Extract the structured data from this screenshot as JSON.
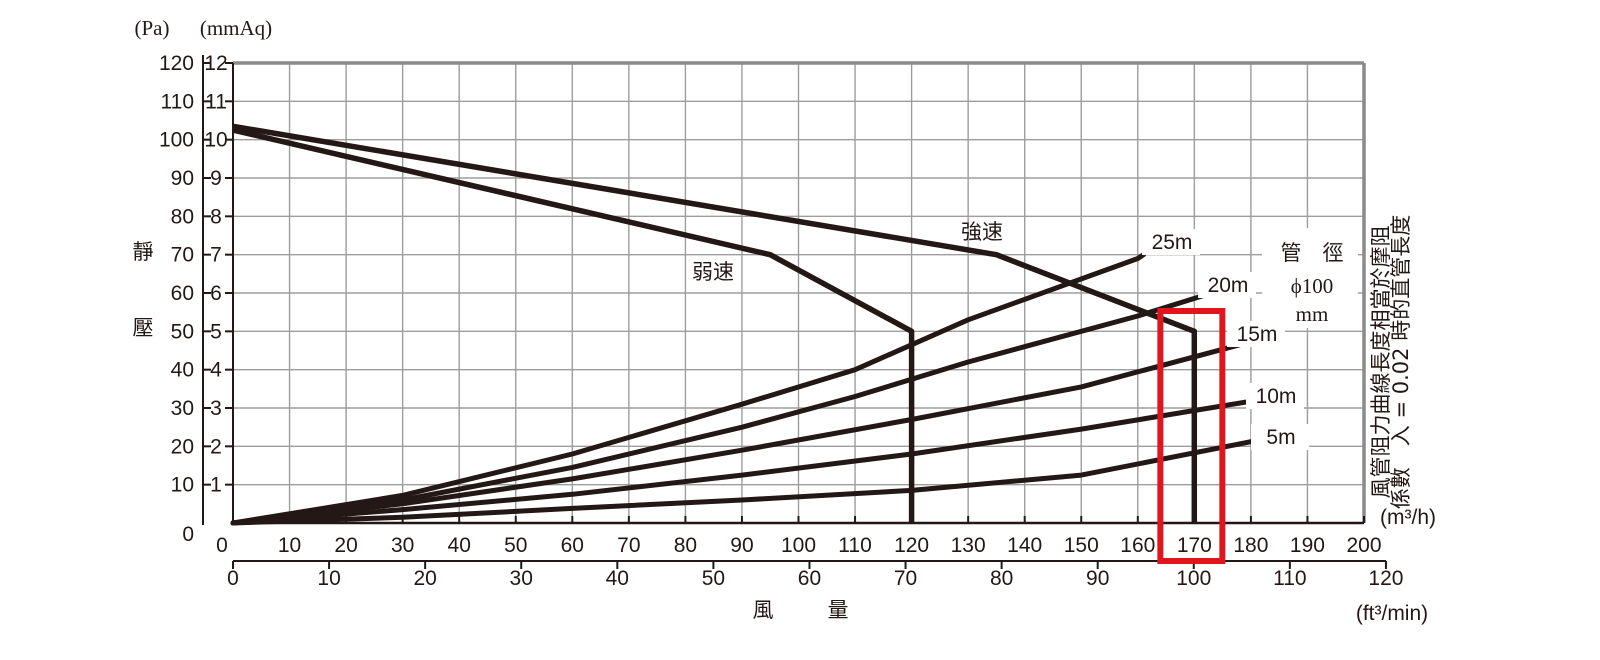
{
  "chart_data": {
    "type": "line",
    "y_axis_unit_pa": "(Pa)",
    "y_axis_unit_mmaq": "(mmAq)",
    "ylabel_chars": [
      "靜",
      "壓"
    ],
    "xlabel_chars": [
      "風",
      "量"
    ],
    "x_unit_m3h": "(m³/h)",
    "x_unit_ft3min": "(ft³/min)",
    "side_note_line1": "風管阻力曲線長度相當於摩阻",
    "side_note_line2": "係數　入 = 0.02 時的直管長度",
    "duct_label_line1": "管　徑",
    "duct_label_line2": "ϕ100",
    "duct_label_line3": "mm",
    "pa_ticks": [
      "0",
      "10",
      "20",
      "30",
      "40",
      "50",
      "60",
      "70",
      "80",
      "90",
      "100",
      "110",
      "120"
    ],
    "mmaq_ticks": [
      "0",
      "1",
      "2",
      "3",
      "4",
      "5",
      "6",
      "7",
      "8",
      "9",
      "10",
      "11",
      "12"
    ],
    "m3h_ticks": [
      "0",
      "10",
      "20",
      "30",
      "40",
      "50",
      "60",
      "70",
      "80",
      "90",
      "100",
      "110",
      "120",
      "130",
      "140",
      "150",
      "160",
      "170",
      "180",
      "190",
      "200"
    ],
    "ft3min_ticks": [
      "0",
      "10",
      "20",
      "30",
      "40",
      "50",
      "60",
      "70",
      "80",
      "90",
      "100",
      "110",
      "120"
    ],
    "x_range_m3h": [
      0,
      200
    ],
    "y_range_mmaq": [
      0,
      12
    ],
    "grid": true,
    "fan_curves": [
      {
        "name": "強速",
        "points": [
          [
            0,
            10.35
          ],
          [
            135,
            7.0
          ],
          [
            170,
            5.0
          ],
          [
            170,
            0
          ]
        ]
      },
      {
        "name": "弱速",
        "points": [
          [
            0,
            10.25
          ],
          [
            95,
            7.0
          ],
          [
            120,
            5.0
          ],
          [
            120,
            0
          ]
        ]
      }
    ],
    "duct_curves": [
      {
        "name": "25m",
        "points": [
          [
            0,
            0
          ],
          [
            30,
            0.72
          ],
          [
            60,
            1.8
          ],
          [
            90,
            3.1
          ],
          [
            110,
            4.0
          ],
          [
            130,
            5.3
          ],
          [
            160,
            6.9
          ],
          [
            161,
            7.0
          ]
        ]
      },
      {
        "name": "20m",
        "points": [
          [
            0,
            0
          ],
          [
            30,
            0.6
          ],
          [
            60,
            1.45
          ],
          [
            90,
            2.5
          ],
          [
            110,
            3.3
          ],
          [
            130,
            4.2
          ],
          [
            160,
            5.4
          ],
          [
            172,
            5.95
          ]
        ]
      },
      {
        "name": "15m",
        "points": [
          [
            0,
            0
          ],
          [
            30,
            0.5
          ],
          [
            60,
            1.15
          ],
          [
            90,
            1.9
          ],
          [
            120,
            2.7
          ],
          [
            150,
            3.55
          ],
          [
            178,
            4.65
          ]
        ]
      },
      {
        "name": "10m",
        "points": [
          [
            0,
            0
          ],
          [
            30,
            0.35
          ],
          [
            60,
            0.75
          ],
          [
            90,
            1.25
          ],
          [
            120,
            1.8
          ],
          [
            150,
            2.45
          ],
          [
            181,
            3.2
          ]
        ]
      },
      {
        "name": "5m",
        "points": [
          [
            0,
            0
          ],
          [
            30,
            0.15
          ],
          [
            60,
            0.38
          ],
          [
            90,
            0.6
          ],
          [
            120,
            0.85
          ],
          [
            150,
            1.25
          ],
          [
            181,
            2.15
          ]
        ]
      }
    ],
    "highlight_m3h": 170,
    "highlight_color": "#e1151c",
    "line_color": "#231815",
    "grid_color": "#9d9d9d"
  }
}
